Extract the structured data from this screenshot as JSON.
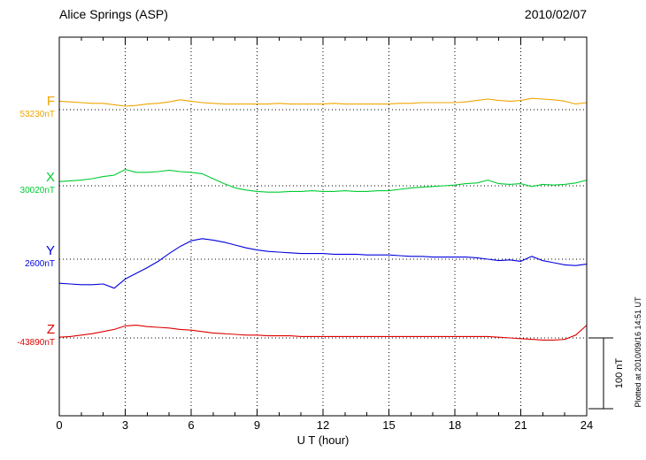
{
  "header": {
    "station_title": "Alice Springs (ASP)",
    "date": "2010/02/07"
  },
  "axis": {
    "xlabel": "U T (hour)",
    "tick_labels": [
      "0",
      "3",
      "6",
      "9",
      "12",
      "15",
      "18",
      "21",
      "24"
    ]
  },
  "scale_bar": {
    "label": "100 nT",
    "span_nT": 100
  },
  "footer_note": "Plotted at 2010/09/16 14:51 UT",
  "chart_data": {
    "type": "line",
    "title": "Alice Springs (ASP)",
    "date": "2010/02/07",
    "xlabel": "U T (hour)",
    "x_unit": "hour",
    "x_range": [
      0,
      24
    ],
    "x_tick_step": 3,
    "x_minor_tick_step": 1,
    "x_step_hours": 0.5,
    "grid": "dotted vertical lines every 3 hours, dotted horizontal baseline per channel",
    "legend_position": "left-margin channel labels",
    "scale_reference_nT": 100,
    "series": [
      {
        "name": "F",
        "baseline_label": "53230nT",
        "baseline_nT": 53230,
        "color": "#f0a500",
        "offsets_nT": [
          12,
          11,
          10,
          9,
          9,
          7,
          5,
          6,
          8,
          9,
          11,
          14,
          12,
          10,
          9,
          8,
          8,
          8,
          8,
          8,
          9,
          8,
          8,
          8,
          8,
          9,
          8,
          8,
          8,
          8,
          8,
          9,
          9,
          10,
          10,
          10,
          10,
          11,
          13,
          15,
          13,
          12,
          13,
          16,
          15,
          14,
          12,
          8,
          10
        ]
      },
      {
        "name": "X",
        "baseline_label": "30020nT",
        "baseline_nT": 30020,
        "color": "#00cc33",
        "offsets_nT": [
          6,
          7,
          8,
          10,
          13,
          15,
          23,
          19,
          19,
          20,
          22,
          20,
          19,
          17,
          10,
          3,
          -3,
          -6,
          -8,
          -9,
          -9,
          -8,
          -8,
          -7,
          -8,
          -8,
          -7,
          -8,
          -8,
          -7,
          -7,
          -5,
          -3,
          -2,
          -1,
          0,
          1,
          3,
          4,
          8,
          3,
          2,
          3,
          -1,
          2,
          1,
          2,
          4,
          8
        ]
      },
      {
        "name": "Y",
        "baseline_label": "2600nT",
        "baseline_nT": 2600,
        "color": "#0000dd",
        "offsets_nT": [
          -34,
          -35,
          -36,
          -36,
          -35,
          -41,
          -28,
          -20,
          -12,
          -3,
          8,
          18,
          26,
          29,
          27,
          24,
          20,
          16,
          13,
          11,
          10,
          9,
          8,
          8,
          8,
          7,
          7,
          7,
          6,
          6,
          6,
          5,
          4,
          4,
          3,
          3,
          3,
          3,
          2,
          0,
          -2,
          -1,
          -3,
          4,
          -2,
          -5,
          -8,
          -9,
          -7
        ]
      },
      {
        "name": "Z",
        "baseline_label": "-43890nT",
        "baseline_nT": -43890,
        "color": "#dd0000",
        "offsets_nT": [
          1,
          2,
          4,
          6,
          9,
          12,
          17,
          18,
          16,
          15,
          14,
          12,
          11,
          9,
          7,
          6,
          5,
          4,
          4,
          3,
          3,
          3,
          2,
          2,
          2,
          2,
          2,
          2,
          2,
          2,
          2,
          2,
          2,
          2,
          2,
          2,
          2,
          2,
          2,
          2,
          1,
          0,
          -1,
          -2,
          -3,
          -3,
          -2,
          4,
          18
        ]
      }
    ]
  }
}
